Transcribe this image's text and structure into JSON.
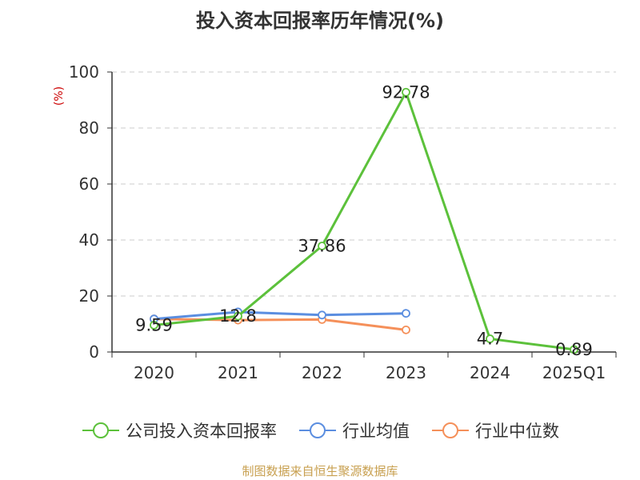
{
  "title": "投入资本回报率历年情况(%)",
  "unit": "(%)",
  "source": "制图数据来自恒生聚源数据库",
  "colors": {
    "company": "#5cc13b",
    "avg": "#5b8ee0",
    "median": "#f5905a",
    "grid": "#cccccc",
    "axis": "#333333"
  },
  "chart_data": {
    "type": "line",
    "title": "投入资本回报率历年情况(%)",
    "ylabel": "(%)",
    "categories": [
      "2020",
      "2021",
      "2022",
      "2023",
      "2024",
      "2025Q1"
    ],
    "ylim": [
      0,
      100
    ],
    "yticks": [
      0,
      20,
      40,
      60,
      80,
      100
    ],
    "grid": true,
    "legend_position": "bottom",
    "series": [
      {
        "name": "公司投入资本回报率",
        "key": "company",
        "values": [
          9.59,
          12.8,
          37.86,
          92.78,
          4.7,
          0.89
        ],
        "labels": [
          "9.59",
          "12.8",
          "37.86",
          "92.78",
          "4.7",
          "0.89"
        ]
      },
      {
        "name": "行业均值",
        "key": "avg",
        "values": [
          11.8,
          14.3,
          13.2,
          13.8,
          null,
          null
        ]
      },
      {
        "name": "行业中位数",
        "key": "median",
        "values": [
          11.8,
          11.4,
          11.6,
          7.9,
          null,
          null
        ]
      }
    ]
  }
}
